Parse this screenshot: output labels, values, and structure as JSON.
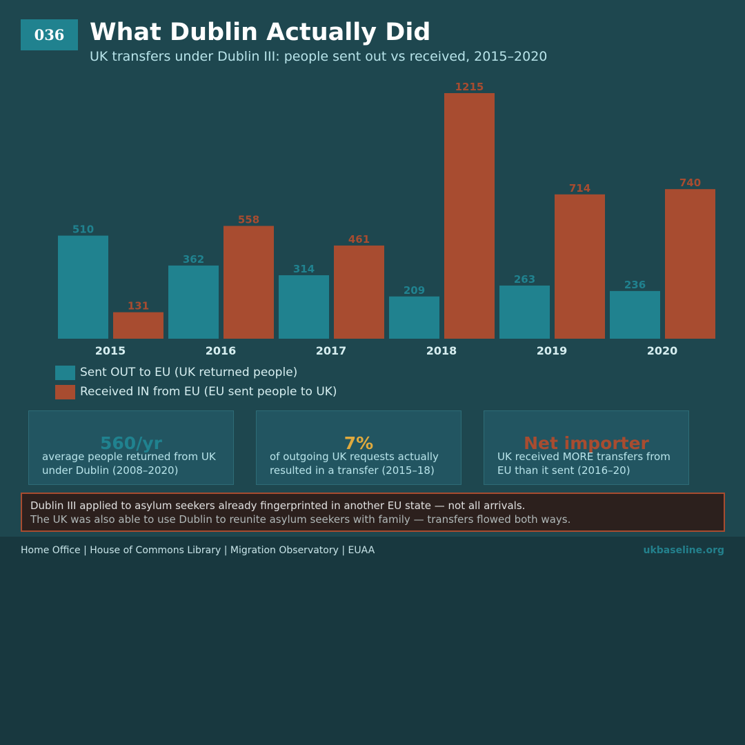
{
  "header": {
    "badge": "036",
    "title": "What Dublin Actually Did",
    "subtitle": "UK transfers under Dublin III: people sent out vs received, 2015–2020"
  },
  "colors": {
    "sent": "#20828f",
    "received": "#a84c30",
    "gold": "#e0aa3e"
  },
  "chart_data": {
    "type": "bar",
    "categories": [
      "2015",
      "2016",
      "2017",
      "2018",
      "2019",
      "2020"
    ],
    "series": [
      {
        "name": "Sent OUT to EU (UK returned people)",
        "values": [
          510,
          362,
          314,
          209,
          263,
          236
        ],
        "color": "#20828f"
      },
      {
        "name": "Received IN from EU (EU sent people to UK)",
        "values": [
          131,
          558,
          461,
          1215,
          714,
          740
        ],
        "color": "#a84c30"
      }
    ],
    "title": "What Dublin Actually Did",
    "xlabel": "",
    "ylabel": "",
    "ylim": [
      0,
      1215
    ],
    "grid": false,
    "legend_position": "bottom-left",
    "data_labels": true
  },
  "legend": {
    "sent_label": "Sent OUT to EU (UK returned people)",
    "received_label": "Received IN from EU (EU sent people to UK)"
  },
  "stats": [
    {
      "value": "560/yr",
      "description": "average people returned from UK under Dublin (2008–2020)",
      "color": "#20828f"
    },
    {
      "value": "7%",
      "description": "of outgoing UK requests actually resulted in a transfer (2015–18)",
      "color": "#e0aa3e"
    },
    {
      "value": "Net importer",
      "description": "UK received MORE transfers from EU than it sent (2016–20)",
      "color": "#a84c30"
    }
  ],
  "note": {
    "line1": "Dublin III applied to asylum seekers already fingerprinted in another EU state — not all arrivals.",
    "line2": "The UK was also able to use Dublin to reunite asylum seekers with family — transfers flowed both ways."
  },
  "footer": {
    "sources": "Home Office | House of Commons Library | Migration Observatory | EUAA",
    "site": "ukbaseline.org"
  }
}
